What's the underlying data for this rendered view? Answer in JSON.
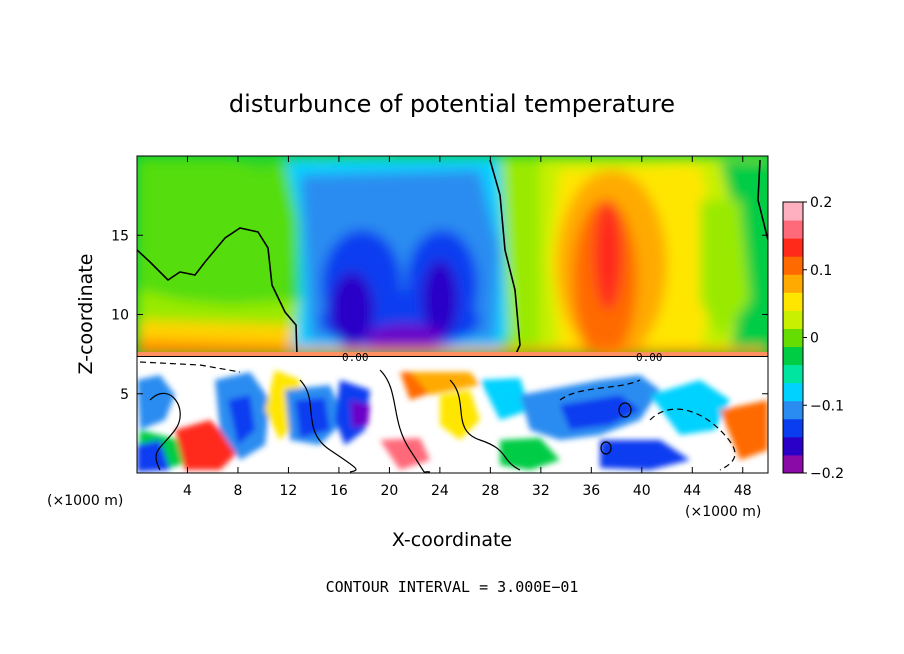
{
  "chart_data": {
    "type": "heatmap",
    "title": "disturbunce of potential temperature",
    "xlabel": "X-coordinate",
    "ylabel": "Z-coordinate",
    "x_unit_left": "(×1000 m)",
    "x_unit_right": "(×1000 m)",
    "xlim": [
      0,
      50
    ],
    "ylim": [
      0,
      20
    ],
    "xticks": [
      4,
      8,
      12,
      16,
      20,
      24,
      28,
      32,
      36,
      40,
      44,
      48
    ],
    "yticks": [
      5,
      10,
      15
    ],
    "colorbar": {
      "range": [
        -0.2,
        0.2
      ],
      "tick_labels": [
        "0.2",
        "0.1",
        "0",
        "−0.1",
        "−0.2"
      ],
      "tick_values": [
        0.2,
        0.1,
        0,
        -0.1,
        -0.2
      ]
    },
    "contour_label": "0.00",
    "footer": "CONTOUR INTERVAL = 3.000E−01",
    "palette": [
      "#8a0aa8",
      "#2a00c8",
      "#0a3cf0",
      "#2a8cf0",
      "#00d2ff",
      "#00e6a0",
      "#00cc44",
      "#66dd00",
      "#c8f000",
      "#ffe600",
      "#ffaa00",
      "#ff6a00",
      "#ff2a1a",
      "#ff6a7a",
      "#ffb0c0"
    ]
  }
}
